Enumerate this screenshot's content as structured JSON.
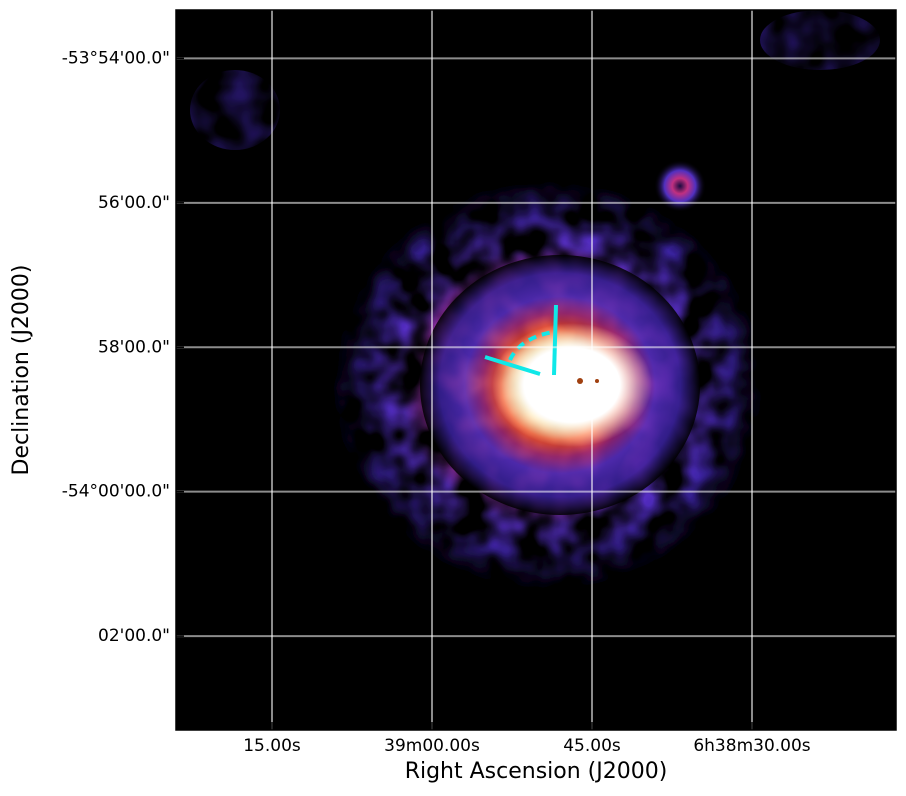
{
  "chart_data": {
    "type": "image",
    "xlabel": "Right Ascension (J2000)",
    "ylabel": "Declination (J2000)",
    "xlim": [
      84,
      16.5
    ],
    "xticks": [
      {
        "value": 75,
        "label": "15.00s"
      },
      {
        "value": 60,
        "label": "39m00.00s"
      },
      {
        "value": 45,
        "label": "45.00s"
      },
      {
        "value": 30,
        "label": "6h38m30.00s"
      }
    ],
    "ylim": [
      -3243.3,
      -3233.33
    ],
    "yticks": [
      {
        "value": -3234,
        "label": "-53°54'00.0\""
      },
      {
        "value": -3236,
        "label": "56'00.0\""
      },
      {
        "value": -3238,
        "label": "58'00.0\""
      },
      {
        "value": -3240,
        "label": "-54°00'00.0\""
      },
      {
        "value": -3242,
        "label": "02'00.0\""
      }
    ],
    "grid": true
  }
}
